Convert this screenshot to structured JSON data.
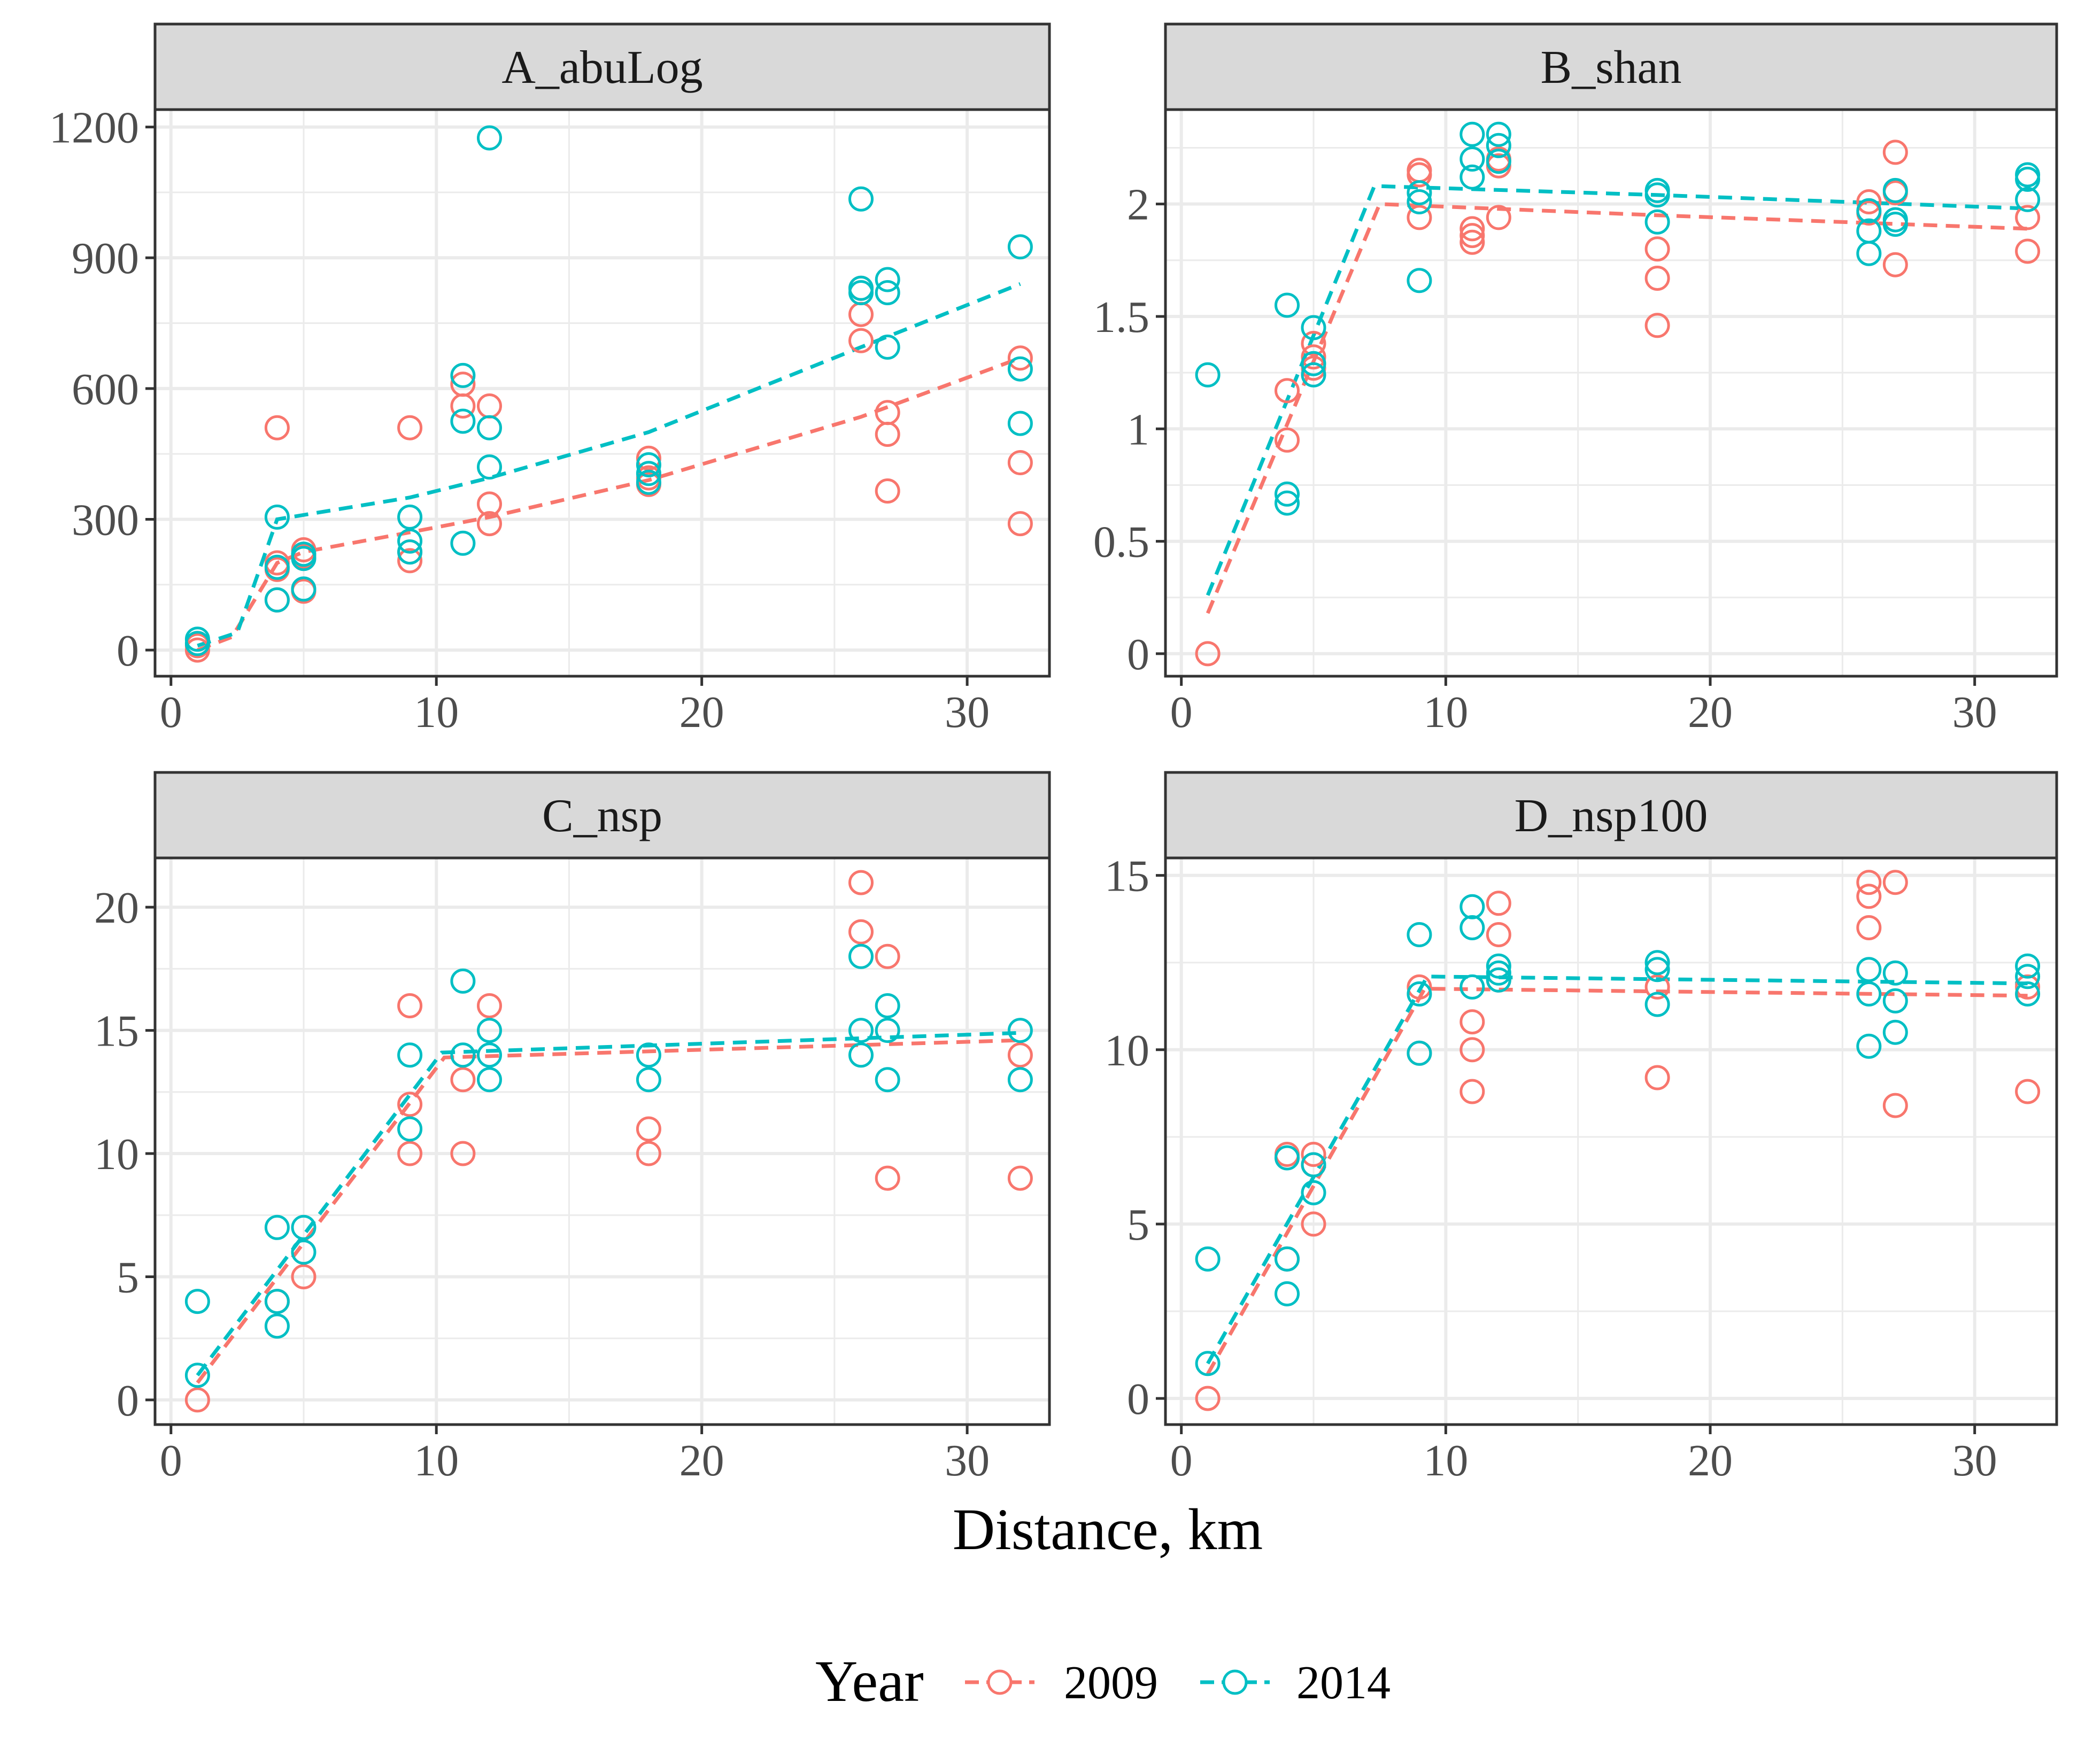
{
  "x_axis_title": "Distance, km",
  "legend": {
    "title": "Year",
    "entries": [
      {
        "label": "2009",
        "color": "#F8766D"
      },
      {
        "label": "2014",
        "color": "#00BFC4"
      }
    ]
  },
  "colors": {
    "y2009": "#F8766D",
    "y2014": "#00BFC4",
    "strip_bg": "#D9D9D9",
    "grid": "#EBEBEB"
  },
  "chart_data": [
    {
      "type": "scatter",
      "title": "A_abuLog",
      "xlabel": "Distance, km",
      "ylabel": "",
      "xlim": [
        -0.6,
        33.1
      ],
      "ylim": [
        -60,
        1240
      ],
      "xticks": [
        0,
        10,
        20,
        30
      ],
      "yticks": [
        0,
        300,
        600,
        900,
        1200
      ],
      "grid": true,
      "series": [
        {
          "name": "2009",
          "points": [
            [
              1,
              0
            ],
            [
              1,
              10
            ],
            [
              4,
              510
            ],
            [
              4,
              200
            ],
            [
              4,
              185
            ],
            [
              4,
              115
            ],
            [
              5,
              230
            ],
            [
              5,
              215
            ],
            [
              5,
              135
            ],
            [
              9,
              510
            ],
            [
              9,
              225
            ],
            [
              9,
              205
            ],
            [
              11,
              610
            ],
            [
              11,
              560
            ],
            [
              12,
              560
            ],
            [
              12,
              335
            ],
            [
              12,
              290
            ],
            [
              18,
              440
            ],
            [
              18,
              395
            ],
            [
              18,
              380
            ],
            [
              26,
              830
            ],
            [
              26,
              770
            ],
            [
              26,
              710
            ],
            [
              27,
              545
            ],
            [
              27,
              495
            ],
            [
              27,
              365
            ],
            [
              32,
              670
            ],
            [
              32,
              430
            ],
            [
              32,
              290
            ]
          ],
          "fit": [
            [
              1,
              0
            ],
            [
              2.3,
              30
            ],
            [
              4,
              200
            ],
            [
              5,
              225
            ],
            [
              9,
              270
            ],
            [
              12,
              305
            ],
            [
              18,
              390
            ],
            [
              26,
              535
            ],
            [
              32,
              670
            ]
          ]
        },
        {
          "name": "2014",
          "points": [
            [
              1,
              25
            ],
            [
              1,
              15
            ],
            [
              4,
              305
            ],
            [
              4,
              190
            ],
            [
              4,
              115
            ],
            [
              5,
              220
            ],
            [
              5,
              210
            ],
            [
              5,
              140
            ],
            [
              9,
              305
            ],
            [
              9,
              250
            ],
            [
              9,
              225
            ],
            [
              11,
              630
            ],
            [
              11,
              525
            ],
            [
              11,
              245
            ],
            [
              12,
              1175
            ],
            [
              12,
              510
            ],
            [
              12,
              420
            ],
            [
              18,
              425
            ],
            [
              18,
              405
            ],
            [
              18,
              385
            ],
            [
              26,
              1035
            ],
            [
              26,
              830
            ],
            [
              26,
              820
            ],
            [
              27,
              850
            ],
            [
              27,
              820
            ],
            [
              27,
              695
            ],
            [
              32,
              925
            ],
            [
              32,
              645
            ],
            [
              32,
              520
            ]
          ],
          "fit": [
            [
              1,
              10
            ],
            [
              2.5,
              40
            ],
            [
              4,
              300
            ],
            [
              9,
              350
            ],
            [
              12,
              395
            ],
            [
              18,
              500
            ],
            [
              26,
              695
            ],
            [
              32,
              840
            ]
          ]
        }
      ]
    },
    {
      "type": "scatter",
      "title": "B_shan",
      "xlabel": "Distance, km",
      "ylabel": "",
      "xlim": [
        -0.6,
        33.1
      ],
      "ylim": [
        -0.1,
        2.42
      ],
      "xticks": [
        0,
        10,
        20,
        30
      ],
      "yticks": [
        0.0,
        0.5,
        1.0,
        1.5,
        2.0
      ],
      "grid": true,
      "series": [
        {
          "name": "2009",
          "points": [
            [
              1,
              0.0
            ],
            [
              4,
              1.17
            ],
            [
              4,
              0.95
            ],
            [
              5,
              1.38
            ],
            [
              5,
              1.32
            ],
            [
              5,
              1.27
            ],
            [
              9,
              2.15
            ],
            [
              9,
              2.13
            ],
            [
              9,
              1.94
            ],
            [
              11,
              1.89
            ],
            [
              11,
              1.86
            ],
            [
              11,
              1.83
            ],
            [
              12,
              2.2
            ],
            [
              12,
              2.17
            ],
            [
              12,
              1.94
            ],
            [
              18,
              1.8
            ],
            [
              18,
              1.67
            ],
            [
              18,
              1.46
            ],
            [
              26,
              2.01
            ],
            [
              26,
              1.96
            ],
            [
              27,
              2.23
            ],
            [
              27,
              2.05
            ],
            [
              27,
              1.73
            ],
            [
              32,
              1.94
            ],
            [
              32,
              1.79
            ]
          ],
          "fit": [
            [
              1,
              0.18
            ],
            [
              7.5,
              2.0
            ],
            [
              18,
              1.95
            ],
            [
              32,
              1.89
            ]
          ]
        },
        {
          "name": "2014",
          "points": [
            [
              1,
              1.24
            ],
            [
              4,
              1.55
            ],
            [
              4,
              0.71
            ],
            [
              4,
              0.67
            ],
            [
              5,
              1.45
            ],
            [
              5,
              1.29
            ],
            [
              5,
              1.24
            ],
            [
              9,
              2.05
            ],
            [
              9,
              2.01
            ],
            [
              9,
              1.66
            ],
            [
              11,
              2.31
            ],
            [
              11,
              2.2
            ],
            [
              11,
              2.12
            ],
            [
              12,
              2.31
            ],
            [
              12,
              2.26
            ],
            [
              12,
              2.19
            ],
            [
              18,
              2.06
            ],
            [
              18,
              2.04
            ],
            [
              18,
              1.92
            ],
            [
              26,
              1.97
            ],
            [
              26,
              1.88
            ],
            [
              26,
              1.78
            ],
            [
              27,
              2.06
            ],
            [
              27,
              1.93
            ],
            [
              27,
              1.91
            ],
            [
              32,
              2.13
            ],
            [
              32,
              2.11
            ],
            [
              32,
              2.02
            ]
          ],
          "fit": [
            [
              1,
              0.26
            ],
            [
              7.3,
              2.08
            ],
            [
              18,
              2.04
            ],
            [
              32,
              1.98
            ]
          ]
        }
      ]
    },
    {
      "type": "scatter",
      "title": "C_nsp",
      "xlabel": "Distance, km",
      "ylabel": "",
      "xlim": [
        -0.6,
        33.1
      ],
      "ylim": [
        -1,
        22
      ],
      "xticks": [
        0,
        10,
        20,
        30
      ],
      "yticks": [
        0,
        5,
        10,
        15,
        20
      ],
      "grid": true,
      "series": [
        {
          "name": "2009",
          "points": [
            [
              1,
              0
            ],
            [
              4,
              4
            ],
            [
              5,
              5
            ],
            [
              9,
              16
            ],
            [
              9,
              12
            ],
            [
              9,
              10
            ],
            [
              11,
              13
            ],
            [
              11,
              10
            ],
            [
              12,
              16
            ],
            [
              18,
              11
            ],
            [
              18,
              10
            ],
            [
              26,
              21
            ],
            [
              26,
              19
            ],
            [
              27,
              18
            ],
            [
              27,
              9
            ],
            [
              32,
              14
            ],
            [
              32,
              9
            ]
          ],
          "fit": [
            [
              1,
              0.7
            ],
            [
              10.3,
              13.9
            ],
            [
              32,
              14.6
            ]
          ]
        },
        {
          "name": "2014",
          "points": [
            [
              1,
              4
            ],
            [
              1,
              1
            ],
            [
              4,
              7
            ],
            [
              4,
              4
            ],
            [
              4,
              3
            ],
            [
              5,
              7
            ],
            [
              5,
              6
            ],
            [
              9,
              14
            ],
            [
              9,
              11
            ],
            [
              11,
              17
            ],
            [
              11,
              14
            ],
            [
              12,
              15
            ],
            [
              12,
              14
            ],
            [
              12,
              13
            ],
            [
              18,
              14
            ],
            [
              18,
              13
            ],
            [
              26,
              18
            ],
            [
              26,
              15
            ],
            [
              26,
              14
            ],
            [
              27,
              16
            ],
            [
              27,
              15
            ],
            [
              27,
              13
            ],
            [
              32,
              15
            ],
            [
              32,
              13
            ]
          ],
          "fit": [
            [
              1,
              1.0
            ],
            [
              10.2,
              14.1
            ],
            [
              32,
              14.9
            ]
          ]
        }
      ]
    },
    {
      "type": "scatter",
      "title": "D_nsp100",
      "xlabel": "Distance, km",
      "ylabel": "",
      "xlim": [
        -0.6,
        33.1
      ],
      "ylim": [
        -0.75,
        15.5
      ],
      "xticks": [
        0,
        10,
        20,
        30
      ],
      "yticks": [
        0,
        5,
        10,
        15
      ],
      "grid": true,
      "series": [
        {
          "name": "2009",
          "points": [
            [
              1,
              0
            ],
            [
              4,
              7
            ],
            [
              4,
              4
            ],
            [
              5,
              7
            ],
            [
              5,
              6.7
            ],
            [
              5,
              5
            ],
            [
              9,
              11.8
            ],
            [
              9,
              9.9
            ],
            [
              11,
              10.8
            ],
            [
              11,
              10
            ],
            [
              11,
              8.8
            ],
            [
              12,
              14.2
            ],
            [
              12,
              13.3
            ],
            [
              12,
              12
            ],
            [
              18,
              11.8
            ],
            [
              18,
              9.2
            ],
            [
              26,
              14.8
            ],
            [
              26,
              14.4
            ],
            [
              26,
              13.5
            ],
            [
              27,
              14.8
            ],
            [
              27,
              8.4
            ],
            [
              32,
              11.8
            ],
            [
              32,
              8.8
            ]
          ],
          "fit": [
            [
              1,
              0.7
            ],
            [
              9.2,
              11.75
            ],
            [
              32,
              11.55
            ]
          ]
        },
        {
          "name": "2014",
          "points": [
            [
              1,
              4
            ],
            [
              1,
              1
            ],
            [
              4,
              6.9
            ],
            [
              4,
              4
            ],
            [
              4,
              3
            ],
            [
              5,
              6.7
            ],
            [
              5,
              5.9
            ],
            [
              9,
              13.3
            ],
            [
              9,
              11.6
            ],
            [
              9,
              9.9
            ],
            [
              11,
              14.1
            ],
            [
              11,
              13.5
            ],
            [
              11,
              11.8
            ],
            [
              12,
              12.4
            ],
            [
              12,
              12.2
            ],
            [
              12,
              12
            ],
            [
              18,
              12.5
            ],
            [
              18,
              12.3
            ],
            [
              18,
              11.3
            ],
            [
              26,
              12.3
            ],
            [
              26,
              11.6
            ],
            [
              26,
              10.1
            ],
            [
              27,
              12.2
            ],
            [
              27,
              11.4
            ],
            [
              27,
              10.5
            ],
            [
              32,
              12.4
            ],
            [
              32,
              12.1
            ],
            [
              32,
              11.6
            ]
          ],
          "fit": [
            [
              1,
              1.0
            ],
            [
              9.3,
              12.1
            ],
            [
              32,
              11.9
            ]
          ]
        }
      ]
    }
  ]
}
